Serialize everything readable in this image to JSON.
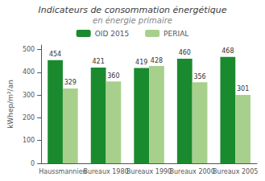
{
  "chart_data": {
    "type": "bar",
    "title": "Indicateurs de consommation énergétique",
    "subtitle": "en énergie primaire",
    "categories": [
      "Haussmannien",
      "Bureaux 1980",
      "Bureaux 1990",
      "Bureaux 2000",
      "Bureaux 2005"
    ],
    "series": [
      {
        "name": "OID 2015",
        "color": "#1a8a2e",
        "values": [
          454,
          421,
          419,
          460,
          468
        ]
      },
      {
        "name": "PERIAL",
        "color": "#a8d08d",
        "values": [
          329,
          360,
          428,
          356,
          301
        ]
      }
    ],
    "ylabel": "kWhep/m²/an",
    "ylim": [
      0,
      520
    ],
    "yticks": [
      0,
      100,
      200,
      300,
      400,
      500
    ],
    "grid": false,
    "legend": "top",
    "data_labels": true
  }
}
